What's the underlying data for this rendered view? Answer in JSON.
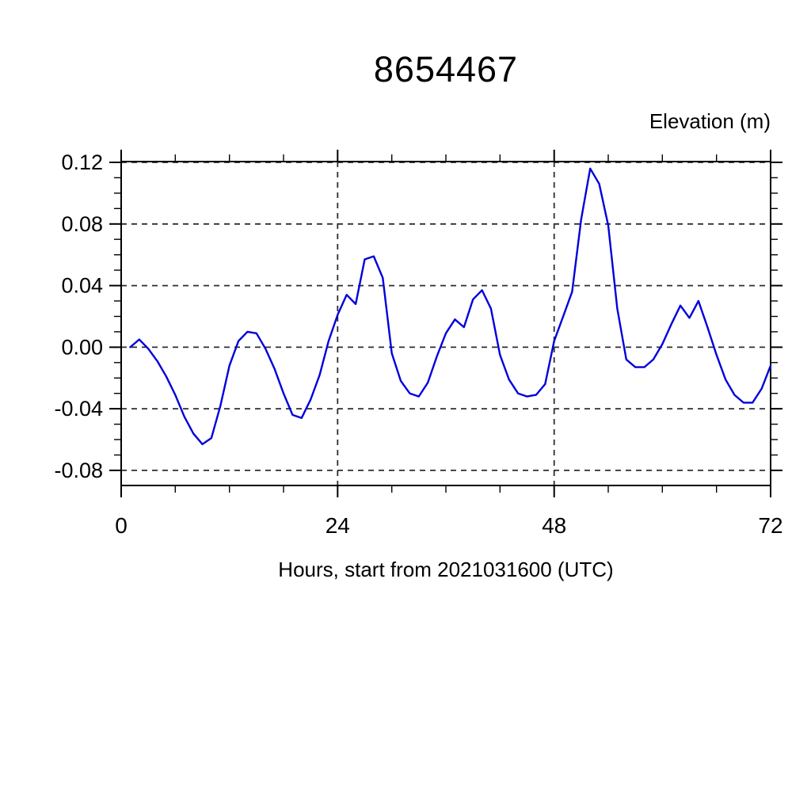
{
  "page": {
    "background": "#ffffff"
  },
  "chart_data": {
    "type": "line",
    "title": "8654467",
    "ylabel": "Elevation (m)",
    "xlabel": "Hours, start from 2021031600 (UTC)",
    "xlim": [
      0,
      72
    ],
    "ylim": [
      -0.0898,
      0.1205
    ],
    "xticks": [
      0,
      24,
      48,
      72
    ],
    "xtick_labels": [
      "0",
      "24",
      "48",
      "72"
    ],
    "x_minor_step": 6,
    "yticks": [
      -0.08,
      -0.04,
      0.0,
      0.04,
      0.08,
      0.12
    ],
    "ytick_labels": [
      "-0.08",
      "-0.04",
      "0.00",
      "0.04",
      "0.08",
      "0.12"
    ],
    "y_minor_step": 0.01,
    "grid": "dashed",
    "grid_x_at": [
      24,
      48
    ],
    "legend_position": "none",
    "axis_color": "#000000",
    "grid_color": "#2e2e2e",
    "series": [
      {
        "name": "elevation",
        "color": "#0000dd",
        "x": [
          1,
          2,
          3,
          4,
          5,
          6,
          7,
          8,
          9,
          10,
          11,
          12,
          13,
          14,
          15,
          16,
          17,
          18,
          19,
          20,
          21,
          22,
          23,
          24,
          25,
          26,
          27,
          28,
          29,
          30,
          31,
          32,
          33,
          34,
          35,
          36,
          37,
          38,
          39,
          40,
          41,
          42,
          43,
          44,
          45,
          46,
          47,
          48,
          49,
          50,
          51,
          52,
          53,
          54,
          55,
          56,
          57,
          58,
          59,
          60,
          61,
          62,
          63,
          64,
          65,
          66,
          67,
          68,
          69,
          70,
          71,
          72
        ],
        "values": [
          0.0,
          0.005,
          -0.001,
          -0.009,
          -0.019,
          -0.031,
          -0.045,
          -0.056,
          -0.063,
          -0.059,
          -0.038,
          -0.012,
          0.004,
          0.01,
          0.009,
          -0.001,
          -0.014,
          -0.03,
          -0.044,
          -0.046,
          -0.034,
          -0.018,
          0.004,
          0.021,
          0.034,
          0.028,
          0.057,
          0.059,
          0.045,
          -0.004,
          -0.022,
          -0.03,
          -0.032,
          -0.023,
          -0.006,
          0.009,
          0.018,
          0.013,
          0.031,
          0.037,
          0.025,
          -0.005,
          -0.021,
          -0.03,
          -0.032,
          -0.031,
          -0.024,
          0.004,
          0.02,
          0.036,
          0.083,
          0.116,
          0.106,
          0.079,
          0.025,
          -0.008,
          -0.013,
          -0.013,
          -0.008,
          0.002,
          0.015,
          0.027,
          0.019,
          0.03,
          0.013,
          -0.005,
          -0.021,
          -0.031,
          -0.036,
          -0.036,
          -0.027,
          -0.012
        ]
      }
    ]
  }
}
